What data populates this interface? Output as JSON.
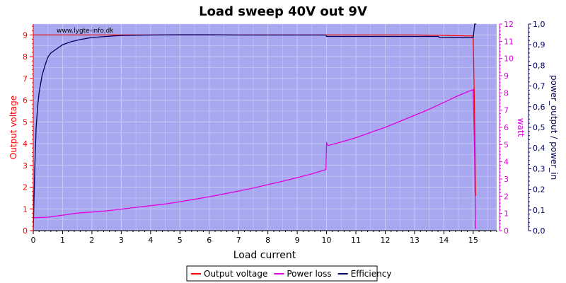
{
  "chart_data": {
    "type": "line",
    "title": "Load sweep 40V out 9V",
    "watermark": "www.lygte-info.dk",
    "xlabel": "Load current",
    "xlim": [
      0,
      15.8
    ],
    "x_ticks": [
      "0",
      "1",
      "2",
      "3",
      "4",
      "5",
      "6",
      "7",
      "8",
      "9",
      "10",
      "11",
      "12",
      "13",
      "14",
      "15"
    ],
    "axes": {
      "left": {
        "label": "Output voltage",
        "range": [
          0,
          9.5
        ],
        "ticks": [
          "0",
          "1",
          "2",
          "3",
          "4",
          "5",
          "6",
          "7",
          "8",
          "9"
        ],
        "color": "#ff0000"
      },
      "right1": {
        "label": "watt",
        "range": [
          0,
          12
        ],
        "ticks": [
          "0",
          "1",
          "2",
          "3",
          "4",
          "5",
          "6",
          "7",
          "8",
          "9",
          "10",
          "11",
          "12"
        ],
        "color": "#e000e0"
      },
      "right2": {
        "label": "power_output / power_in",
        "range": [
          0,
          1.0
        ],
        "ticks": [
          "0,0",
          "0,1",
          "0,2",
          "0,3",
          "0,4",
          "0,5",
          "0,6",
          "0,7",
          "0,8",
          "0,9",
          "1,0"
        ],
        "color": "#000060"
      }
    },
    "colors": {
      "plot_bg": "#a8a8f0",
      "grid": "#c8c8f8"
    },
    "series": [
      {
        "name": "Output voltage",
        "axis": "left",
        "color": "#ff0000",
        "x": [
          0,
          1,
          2,
          3,
          4,
          5,
          6,
          7,
          8,
          9,
          10,
          11,
          12,
          13,
          14,
          15.0,
          15.05,
          15.08
        ],
        "y": [
          9.0,
          9.0,
          9.0,
          9.0,
          9.0,
          9.0,
          9.0,
          9.0,
          9.0,
          9.0,
          9.0,
          9.0,
          9.0,
          9.0,
          8.98,
          8.95,
          5.0,
          1.6
        ]
      },
      {
        "name": "Power loss",
        "axis": "right1",
        "color": "#e000e0",
        "x": [
          0,
          0.5,
          1,
          1.5,
          2,
          2.5,
          3,
          3.5,
          4,
          4.5,
          5,
          5.5,
          6,
          6.5,
          7,
          7.5,
          8,
          8.5,
          9,
          9.5,
          9.98,
          10.0,
          10.05,
          10.5,
          11,
          11.5,
          12,
          12.5,
          13,
          13.5,
          14,
          14.5,
          15.0,
          15.05,
          15.08
        ],
        "y": [
          0.75,
          0.78,
          0.9,
          1.02,
          1.08,
          1.15,
          1.25,
          1.35,
          1.45,
          1.55,
          1.68,
          1.82,
          1.97,
          2.13,
          2.3,
          2.48,
          2.67,
          2.87,
          3.08,
          3.3,
          3.55,
          5.1,
          4.95,
          5.15,
          5.4,
          5.7,
          6.0,
          6.35,
          6.7,
          7.05,
          7.45,
          7.85,
          8.2,
          4.0,
          0.1
        ]
      },
      {
        "name": "Efficiency",
        "axis": "right2",
        "color": "#000060",
        "x": [
          0,
          0.05,
          0.1,
          0.15,
          0.2,
          0.3,
          0.4,
          0.5,
          0.6,
          0.8,
          1.0,
          1.3,
          1.6,
          2.0,
          2.5,
          3.0,
          4.0,
          5.0,
          6.0,
          7.0,
          8.0,
          9.0,
          9.98,
          10.0,
          11.0,
          12.0,
          13.0,
          13.8,
          13.85,
          14.0,
          15.0,
          15.05,
          15.1
        ],
        "y": [
          0.0,
          0.3,
          0.5,
          0.6,
          0.67,
          0.75,
          0.8,
          0.84,
          0.86,
          0.88,
          0.9,
          0.915,
          0.925,
          0.935,
          0.94,
          0.945,
          0.947,
          0.948,
          0.948,
          0.947,
          0.947,
          0.947,
          0.947,
          0.94,
          0.94,
          0.94,
          0.94,
          0.94,
          0.935,
          0.935,
          0.934,
          1.0,
          1.0
        ]
      }
    ],
    "legend": {
      "position": "bottom-center",
      "entries": [
        {
          "label": "Output voltage",
          "color": "#ff0000"
        },
        {
          "label": "Power loss",
          "color": "#e000e0"
        },
        {
          "label": "Efficiency",
          "color": "#000060"
        }
      ]
    }
  }
}
